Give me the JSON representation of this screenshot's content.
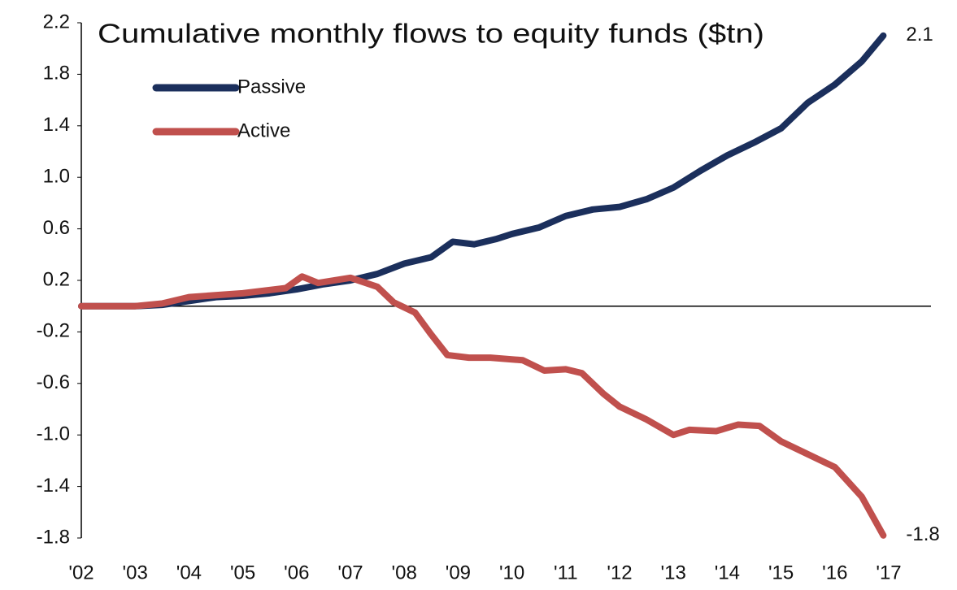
{
  "chart_data": {
    "type": "line",
    "title": "Cumulative monthly flows to equity funds ($tn)",
    "xlim": [
      2002,
      2017
    ],
    "xticks": [
      {
        "value": 2002,
        "label": "'02"
      },
      {
        "value": 2003,
        "label": "'03"
      },
      {
        "value": 2004,
        "label": "'04"
      },
      {
        "value": 2005,
        "label": "'05"
      },
      {
        "value": 2006,
        "label": "'06"
      },
      {
        "value": 2007,
        "label": "'07"
      },
      {
        "value": 2008,
        "label": "'08"
      },
      {
        "value": 2009,
        "label": "'09"
      },
      {
        "value": 2010,
        "label": "'10"
      },
      {
        "value": 2011,
        "label": "'11"
      },
      {
        "value": 2012,
        "label": "'12"
      },
      {
        "value": 2013,
        "label": "'13"
      },
      {
        "value": 2014,
        "label": "'14"
      },
      {
        "value": 2015,
        "label": "'15"
      },
      {
        "value": 2016,
        "label": "'16"
      },
      {
        "value": 2017,
        "label": "'17"
      }
    ],
    "ylim": [
      -1.8,
      2.2
    ],
    "yticks": [
      2.2,
      1.8,
      1.4,
      {
        "value": 1,
        "label": "1.0"
      },
      0.6,
      0.2,
      -0.2,
      -0.6,
      {
        "value": -1,
        "label": "-1.0"
      },
      -1.4,
      -1.8
    ],
    "grid": false,
    "legend": "upper left",
    "series": [
      {
        "name": "Passive",
        "color": "#1b2f5c",
        "x": [
          2002,
          2003,
          2003.5,
          2004,
          2004.5,
          2005,
          2005.5,
          2006,
          2006.5,
          2007,
          2007.5,
          2008,
          2008.5,
          2008.9,
          2009.3,
          2009.7,
          2010,
          2010.5,
          2011,
          2011.5,
          2012,
          2012.5,
          2013,
          2013.5,
          2014,
          2014.5,
          2015,
          2015.5,
          2016,
          2016.5,
          2016.9
        ],
        "values": [
          0,
          0,
          0.01,
          0.04,
          0.07,
          0.08,
          0.1,
          0.13,
          0.17,
          0.2,
          0.25,
          0.33,
          0.38,
          0.5,
          0.48,
          0.52,
          0.56,
          0.61,
          0.7,
          0.75,
          0.77,
          0.83,
          0.92,
          1.05,
          1.17,
          1.27,
          1.38,
          1.58,
          1.72,
          1.9,
          2.1
        ],
        "end_label": "2.1"
      },
      {
        "name": "Active",
        "color": "#c0504d",
        "x": [
          2002,
          2003,
          2003.5,
          2004,
          2005,
          2005.8,
          2006.1,
          2006.4,
          2007,
          2007.5,
          2007.8,
          2008.2,
          2008.5,
          2008.8,
          2009.2,
          2009.6,
          2010.2,
          2010.6,
          2011,
          2011.3,
          2011.7,
          2012,
          2012.5,
          2013,
          2013.3,
          2013.8,
          2014.2,
          2014.6,
          2015,
          2015.5,
          2016,
          2016.5,
          2016.9
        ],
        "values": [
          0,
          0,
          0.02,
          0.07,
          0.1,
          0.14,
          0.23,
          0.18,
          0.22,
          0.15,
          0.03,
          -0.05,
          -0.22,
          -0.38,
          -0.4,
          -0.4,
          -0.42,
          -0.5,
          -0.49,
          -0.52,
          -0.68,
          -0.78,
          -0.88,
          -1.0,
          -0.96,
          -0.97,
          -0.92,
          -0.93,
          -1.05,
          -1.15,
          -1.25,
          -1.48,
          -1.78
        ],
        "end_label": "-1.8"
      }
    ]
  }
}
